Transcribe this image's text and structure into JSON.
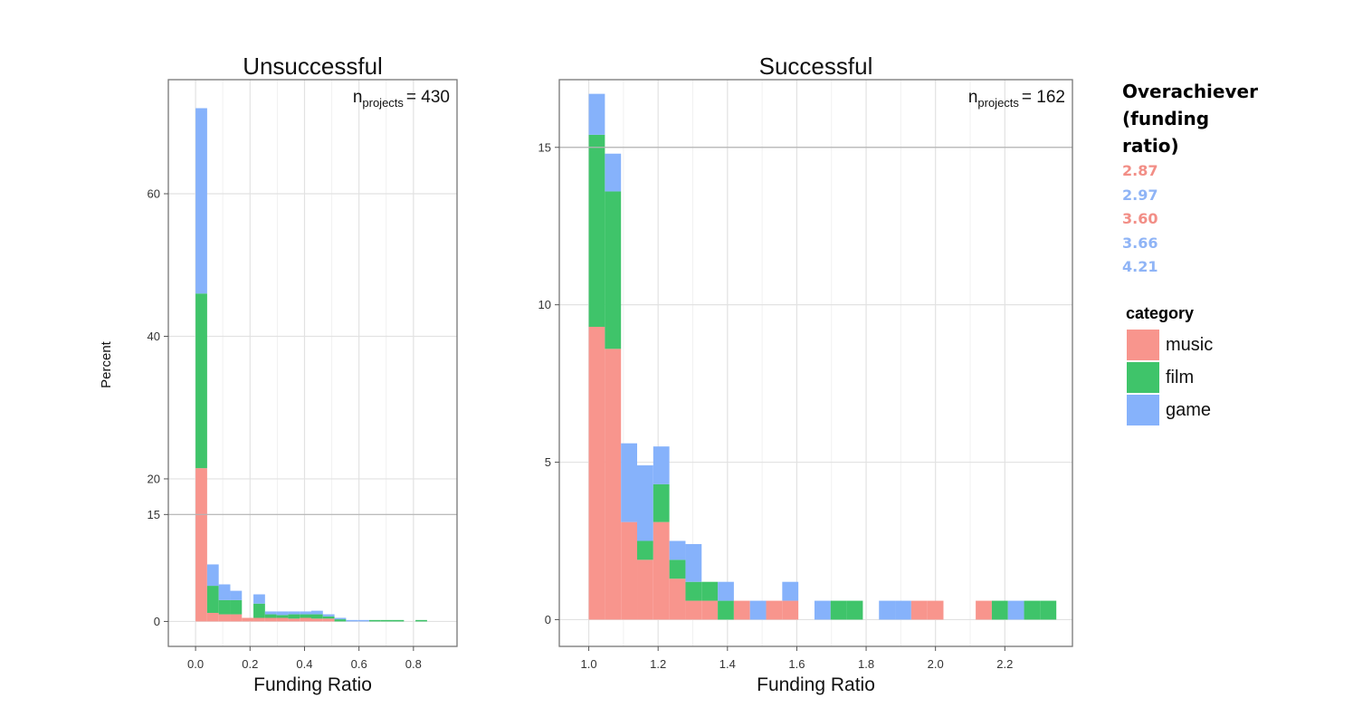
{
  "chart_data": [
    {
      "type": "bar",
      "title": "Unsuccessful",
      "annotation": {
        "n": "n",
        "sub": "projects",
        "value": "= 430"
      },
      "xlabel": "Funding Ratio",
      "ylabel": "Percent",
      "xlim": [
        -0.1,
        0.96
      ],
      "ylim": [
        -3.5,
        76
      ],
      "x_ticks": [
        "0.0",
        "0.2",
        "0.4",
        "0.6",
        "0.8"
      ],
      "y_ticks": [
        "0",
        "15",
        "20",
        "40",
        "60"
      ],
      "hline": 15,
      "bin_width": 0.0425,
      "bins": [
        {
          "x": 0.0,
          "music": 21.5,
          "film": 24.5,
          "game": 26.0
        },
        {
          "x": 0.0425,
          "music": 1.2,
          "film": 3.8,
          "game": 3.0
        },
        {
          "x": 0.085,
          "music": 1.0,
          "film": 2.0,
          "game": 2.2
        },
        {
          "x": 0.1275,
          "music": 1.0,
          "film": 2.0,
          "game": 1.3
        },
        {
          "x": 0.17,
          "music": 0.5,
          "film": 0.0,
          "game": 0.0
        },
        {
          "x": 0.2125,
          "music": 0.5,
          "film": 2.0,
          "game": 1.3
        },
        {
          "x": 0.255,
          "music": 0.5,
          "film": 0.5,
          "game": 0.4
        },
        {
          "x": 0.2975,
          "music": 0.5,
          "film": 0.4,
          "game": 0.5
        },
        {
          "x": 0.34,
          "music": 0.4,
          "film": 0.6,
          "game": 0.4
        },
        {
          "x": 0.3825,
          "music": 0.5,
          "film": 0.5,
          "game": 0.4
        },
        {
          "x": 0.425,
          "music": 0.4,
          "film": 0.6,
          "game": 0.5
        },
        {
          "x": 0.4675,
          "music": 0.4,
          "film": 0.3,
          "game": 0.3
        },
        {
          "x": 0.51,
          "music": 0.0,
          "film": 0.3,
          "game": 0.2
        },
        {
          "x": 0.5525,
          "music": 0.0,
          "film": 0.0,
          "game": 0.2
        },
        {
          "x": 0.595,
          "music": 0.0,
          "film": 0.0,
          "game": 0.2
        },
        {
          "x": 0.6375,
          "music": 0.0,
          "film": 0.2,
          "game": 0.0
        },
        {
          "x": 0.68,
          "music": 0.0,
          "film": 0.2,
          "game": 0.0
        },
        {
          "x": 0.7225,
          "music": 0.0,
          "film": 0.2,
          "game": 0.0
        },
        {
          "x": 0.8075,
          "music": 0.0,
          "film": 0.2,
          "game": 0.0
        }
      ]
    },
    {
      "type": "bar",
      "title": "Successful",
      "annotation": {
        "n": "n",
        "sub": "projects",
        "value": "= 162"
      },
      "xlabel": "Funding Ratio",
      "ylabel": "",
      "xlim": [
        0.915,
        2.395
      ],
      "ylim": [
        -0.85,
        17.15
      ],
      "x_ticks": [
        "1.0",
        "1.2",
        "1.4",
        "1.6",
        "1.8",
        "2.0",
        "2.2"
      ],
      "y_ticks": [
        "0",
        "5",
        "10",
        "15"
      ],
      "hline": 15,
      "bin_width": 0.0465,
      "bins": [
        {
          "x": 1.0,
          "music": 9.3,
          "film": 6.1,
          "game": 1.3
        },
        {
          "x": 1.0465,
          "music": 8.6,
          "film": 5.0,
          "game": 1.2
        },
        {
          "x": 1.093,
          "music": 3.1,
          "film": 0.0,
          "game": 2.5
        },
        {
          "x": 1.1395,
          "music": 1.9,
          "film": 0.6,
          "game": 2.4
        },
        {
          "x": 1.186,
          "music": 3.1,
          "film": 1.2,
          "game": 1.2
        },
        {
          "x": 1.2325,
          "music": 1.3,
          "film": 0.6,
          "game": 0.6
        },
        {
          "x": 1.279,
          "music": 0.6,
          "film": 0.6,
          "game": 1.2
        },
        {
          "x": 1.3255,
          "music": 0.6,
          "film": 0.6,
          "game": 0.0
        },
        {
          "x": 1.372,
          "music": 0.0,
          "film": 0.6,
          "game": 0.6
        },
        {
          "x": 1.4185,
          "music": 0.6,
          "film": 0.0,
          "game": 0.0
        },
        {
          "x": 1.465,
          "music": 0.0,
          "film": 0.0,
          "game": 0.6
        },
        {
          "x": 1.5115,
          "music": 0.6,
          "film": 0.0,
          "game": 0.0
        },
        {
          "x": 1.558,
          "music": 0.6,
          "film": 0.0,
          "game": 0.6
        },
        {
          "x": 1.6045,
          "music": 0.0,
          "film": 0.0,
          "game": 0.0
        },
        {
          "x": 1.651,
          "music": 0.0,
          "film": 0.0,
          "game": 0.6
        },
        {
          "x": 1.6975,
          "music": 0.0,
          "film": 0.6,
          "game": 0.0
        },
        {
          "x": 1.744,
          "music": 0.0,
          "film": 0.6,
          "game": 0.0
        },
        {
          "x": 1.837,
          "music": 0.0,
          "film": 0.0,
          "game": 0.6
        },
        {
          "x": 1.8835,
          "music": 0.0,
          "film": 0.0,
          "game": 0.6
        },
        {
          "x": 1.93,
          "music": 0.6,
          "film": 0.0,
          "game": 0.0
        },
        {
          "x": 1.9765,
          "music": 0.6,
          "film": 0.0,
          "game": 0.0
        },
        {
          "x": 2.116,
          "music": 0.6,
          "film": 0.0,
          "game": 0.0
        },
        {
          "x": 2.1625,
          "music": 0.0,
          "film": 0.6,
          "game": 0.0
        },
        {
          "x": 2.209,
          "music": 0.0,
          "film": 0.0,
          "game": 0.6
        },
        {
          "x": 2.2555,
          "music": 0.0,
          "film": 0.6,
          "game": 0.0
        },
        {
          "x": 2.302,
          "music": 0.0,
          "film": 0.6,
          "game": 0.0
        }
      ]
    }
  ],
  "overachiever": {
    "title": "Overachiever (funding ratio)",
    "items": [
      {
        "value": "2.87",
        "color": "#f28e86"
      },
      {
        "value": "2.97",
        "color": "#8fb4f6"
      },
      {
        "value": "3.60",
        "color": "#f28e86"
      },
      {
        "value": "3.66",
        "color": "#8fb4f6"
      },
      {
        "value": "4.21",
        "color": "#8fb4f6"
      }
    ]
  },
  "legend": {
    "title": "category",
    "items": [
      {
        "label": "music",
        "color": "#f8958d"
      },
      {
        "label": "film",
        "color": "#3fc46a"
      },
      {
        "label": "game",
        "color": "#86b2fb"
      }
    ]
  }
}
